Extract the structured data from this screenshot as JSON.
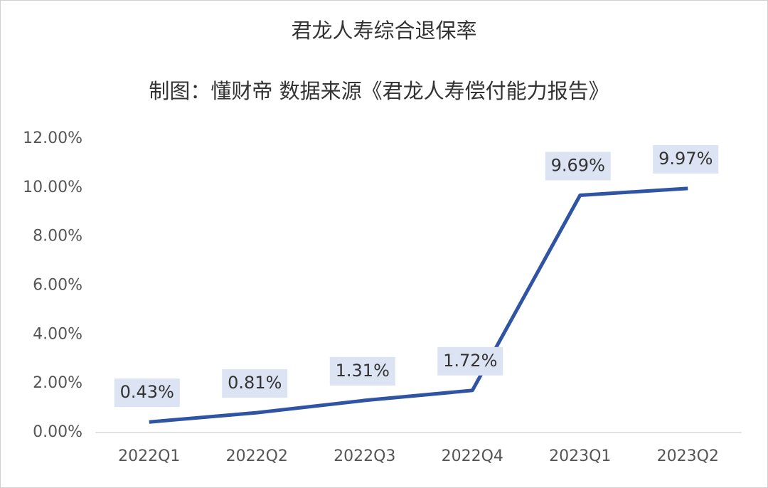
{
  "chart_data": {
    "type": "line",
    "title": "君龙人寿综合退保率",
    "subtitle": "制图：懂财帝  数据来源《君龙人寿偿付能力报告》",
    "categories": [
      "2022Q1",
      "2022Q2",
      "2022Q3",
      "2022Q4",
      "2023Q1",
      "2023Q2"
    ],
    "series": [
      {
        "color": "#2e54a3",
        "values": [
          0.43,
          0.81,
          1.31,
          1.72,
          9.69,
          9.97
        ],
        "value_labels": [
          "0.43%",
          "0.81%",
          "1.31%",
          "1.72%",
          "9.69%",
          "9.97%"
        ]
      }
    ],
    "ylim": [
      0,
      12
    ],
    "yticks": [
      {
        "value": 0,
        "label": "0.00%"
      },
      {
        "value": 2,
        "label": "2.00%"
      },
      {
        "value": 4,
        "label": "4.00%"
      },
      {
        "value": 6,
        "label": "6.00%"
      },
      {
        "value": 8,
        "label": "8.00%"
      },
      {
        "value": 10,
        "label": "10.00%"
      },
      {
        "value": 12,
        "label": "12.00%"
      }
    ]
  }
}
